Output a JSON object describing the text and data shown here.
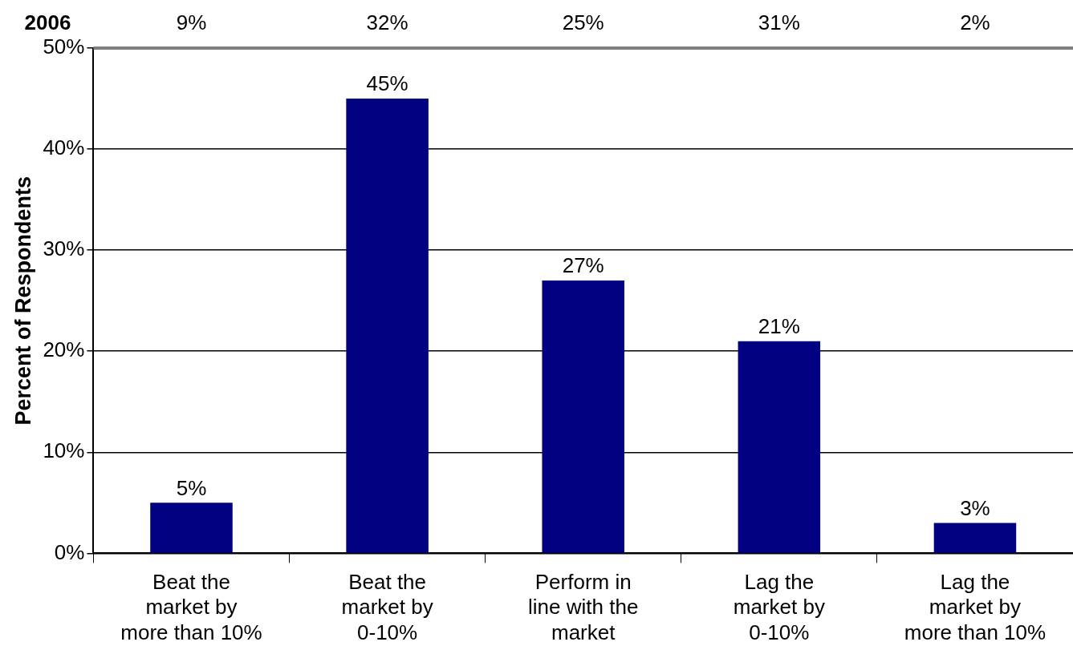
{
  "chart_data": {
    "type": "bar",
    "ylabel": "Percent of Respondents",
    "categories": [
      "Beat the market by more than 10%",
      "Beat the market by 0-10%",
      "Perform in line with the market",
      "Lag the market by 0-10%",
      "Lag the market by more than 10%"
    ],
    "values": [
      5,
      45,
      27,
      21,
      3
    ],
    "color": "#000080",
    "value_labels": [
      "5%",
      "45%",
      "27%",
      "21%",
      "3%"
    ],
    "ylim": [
      0,
      50
    ],
    "yticks": [
      {
        "value": 0,
        "label": "0%"
      },
      {
        "value": 10,
        "label": "10%"
      },
      {
        "value": 20,
        "label": "20%"
      },
      {
        "value": 30,
        "label": "30%"
      },
      {
        "value": 40,
        "label": "40%"
      },
      {
        "value": 50,
        "label": "50%"
      }
    ],
    "grid": "y",
    "legend": false,
    "annotations": [
      "2006",
      "9%",
      "32%",
      "25%",
      "31%",
      "2%"
    ]
  }
}
